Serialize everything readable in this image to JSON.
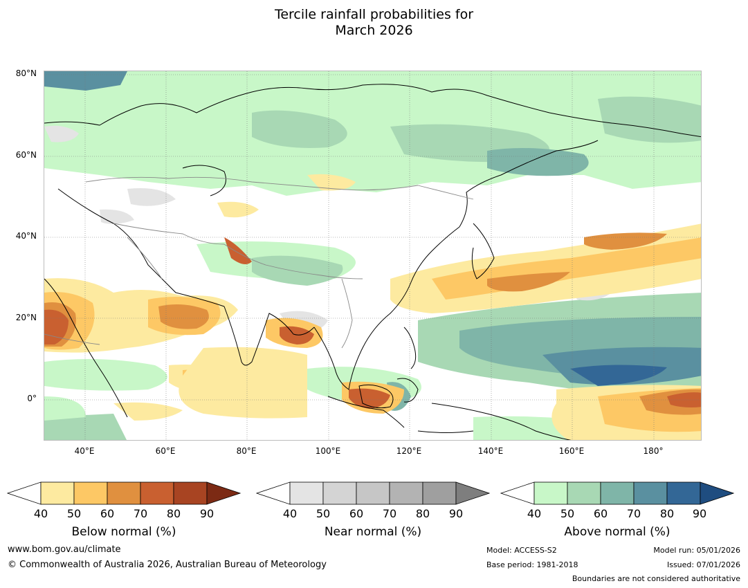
{
  "title": {
    "line1": "Tercile rainfall probabilities for",
    "line2": "March 2026"
  },
  "map": {
    "lat_labels": [
      "80°N",
      "60°N",
      "40°N",
      "20°N",
      "0°"
    ],
    "lon_labels": [
      "40°E",
      "60°E",
      "80°E",
      "100°E",
      "120°E",
      "140°E",
      "160°E",
      "180°"
    ],
    "lat_range": [
      -10,
      81
    ],
    "lon_range": [
      30,
      192
    ]
  },
  "legends": [
    {
      "title": "Below normal (%)",
      "ticks": [
        "40",
        "50",
        "60",
        "70",
        "80",
        "90"
      ],
      "colors": [
        "#ffffff",
        "#fdeaa0",
        "#fdc865",
        "#e0903f",
        "#c96030",
        "#a84422",
        "#7c2a14"
      ]
    },
    {
      "title": "Near normal (%)",
      "ticks": [
        "40",
        "50",
        "60",
        "70",
        "80",
        "90"
      ],
      "colors": [
        "#ffffff",
        "#e4e4e4",
        "#d4d4d4",
        "#c6c6c6",
        "#b3b3b3",
        "#9f9f9f",
        "#7e7e7e"
      ]
    },
    {
      "title": "Above normal (%)",
      "ticks": [
        "40",
        "50",
        "60",
        "70",
        "80",
        "90"
      ],
      "colors": [
        "#ffffff",
        "#c8f7c8",
        "#a8d8b4",
        "#7fb5a8",
        "#5a90a0",
        "#336796",
        "#1f4d80"
      ]
    }
  ],
  "footer": {
    "website": "www.bom.gov.au/climate",
    "copyright": "© Commonwealth of Australia 2026, Australian Bureau of Meteorology",
    "model": "Model: ACCESS-S2",
    "base_period": "Base period: 1981-2018",
    "model_run": "Model run: 05/01/2026",
    "issued": "Issued: 07/01/2026",
    "disclaimer": "Boundaries are not considered authoritative"
  },
  "colors": {
    "above_light": "#c8f7c8",
    "above_mid": "#a8d8b4",
    "above_dark": "#7fb5a8",
    "above_deep": "#5a90a0",
    "below_light": "#fdeaa0",
    "below_mid": "#fdc865",
    "below_dark": "#e0903f",
    "below_deep": "#c96030",
    "near": "#e4e4e4"
  }
}
